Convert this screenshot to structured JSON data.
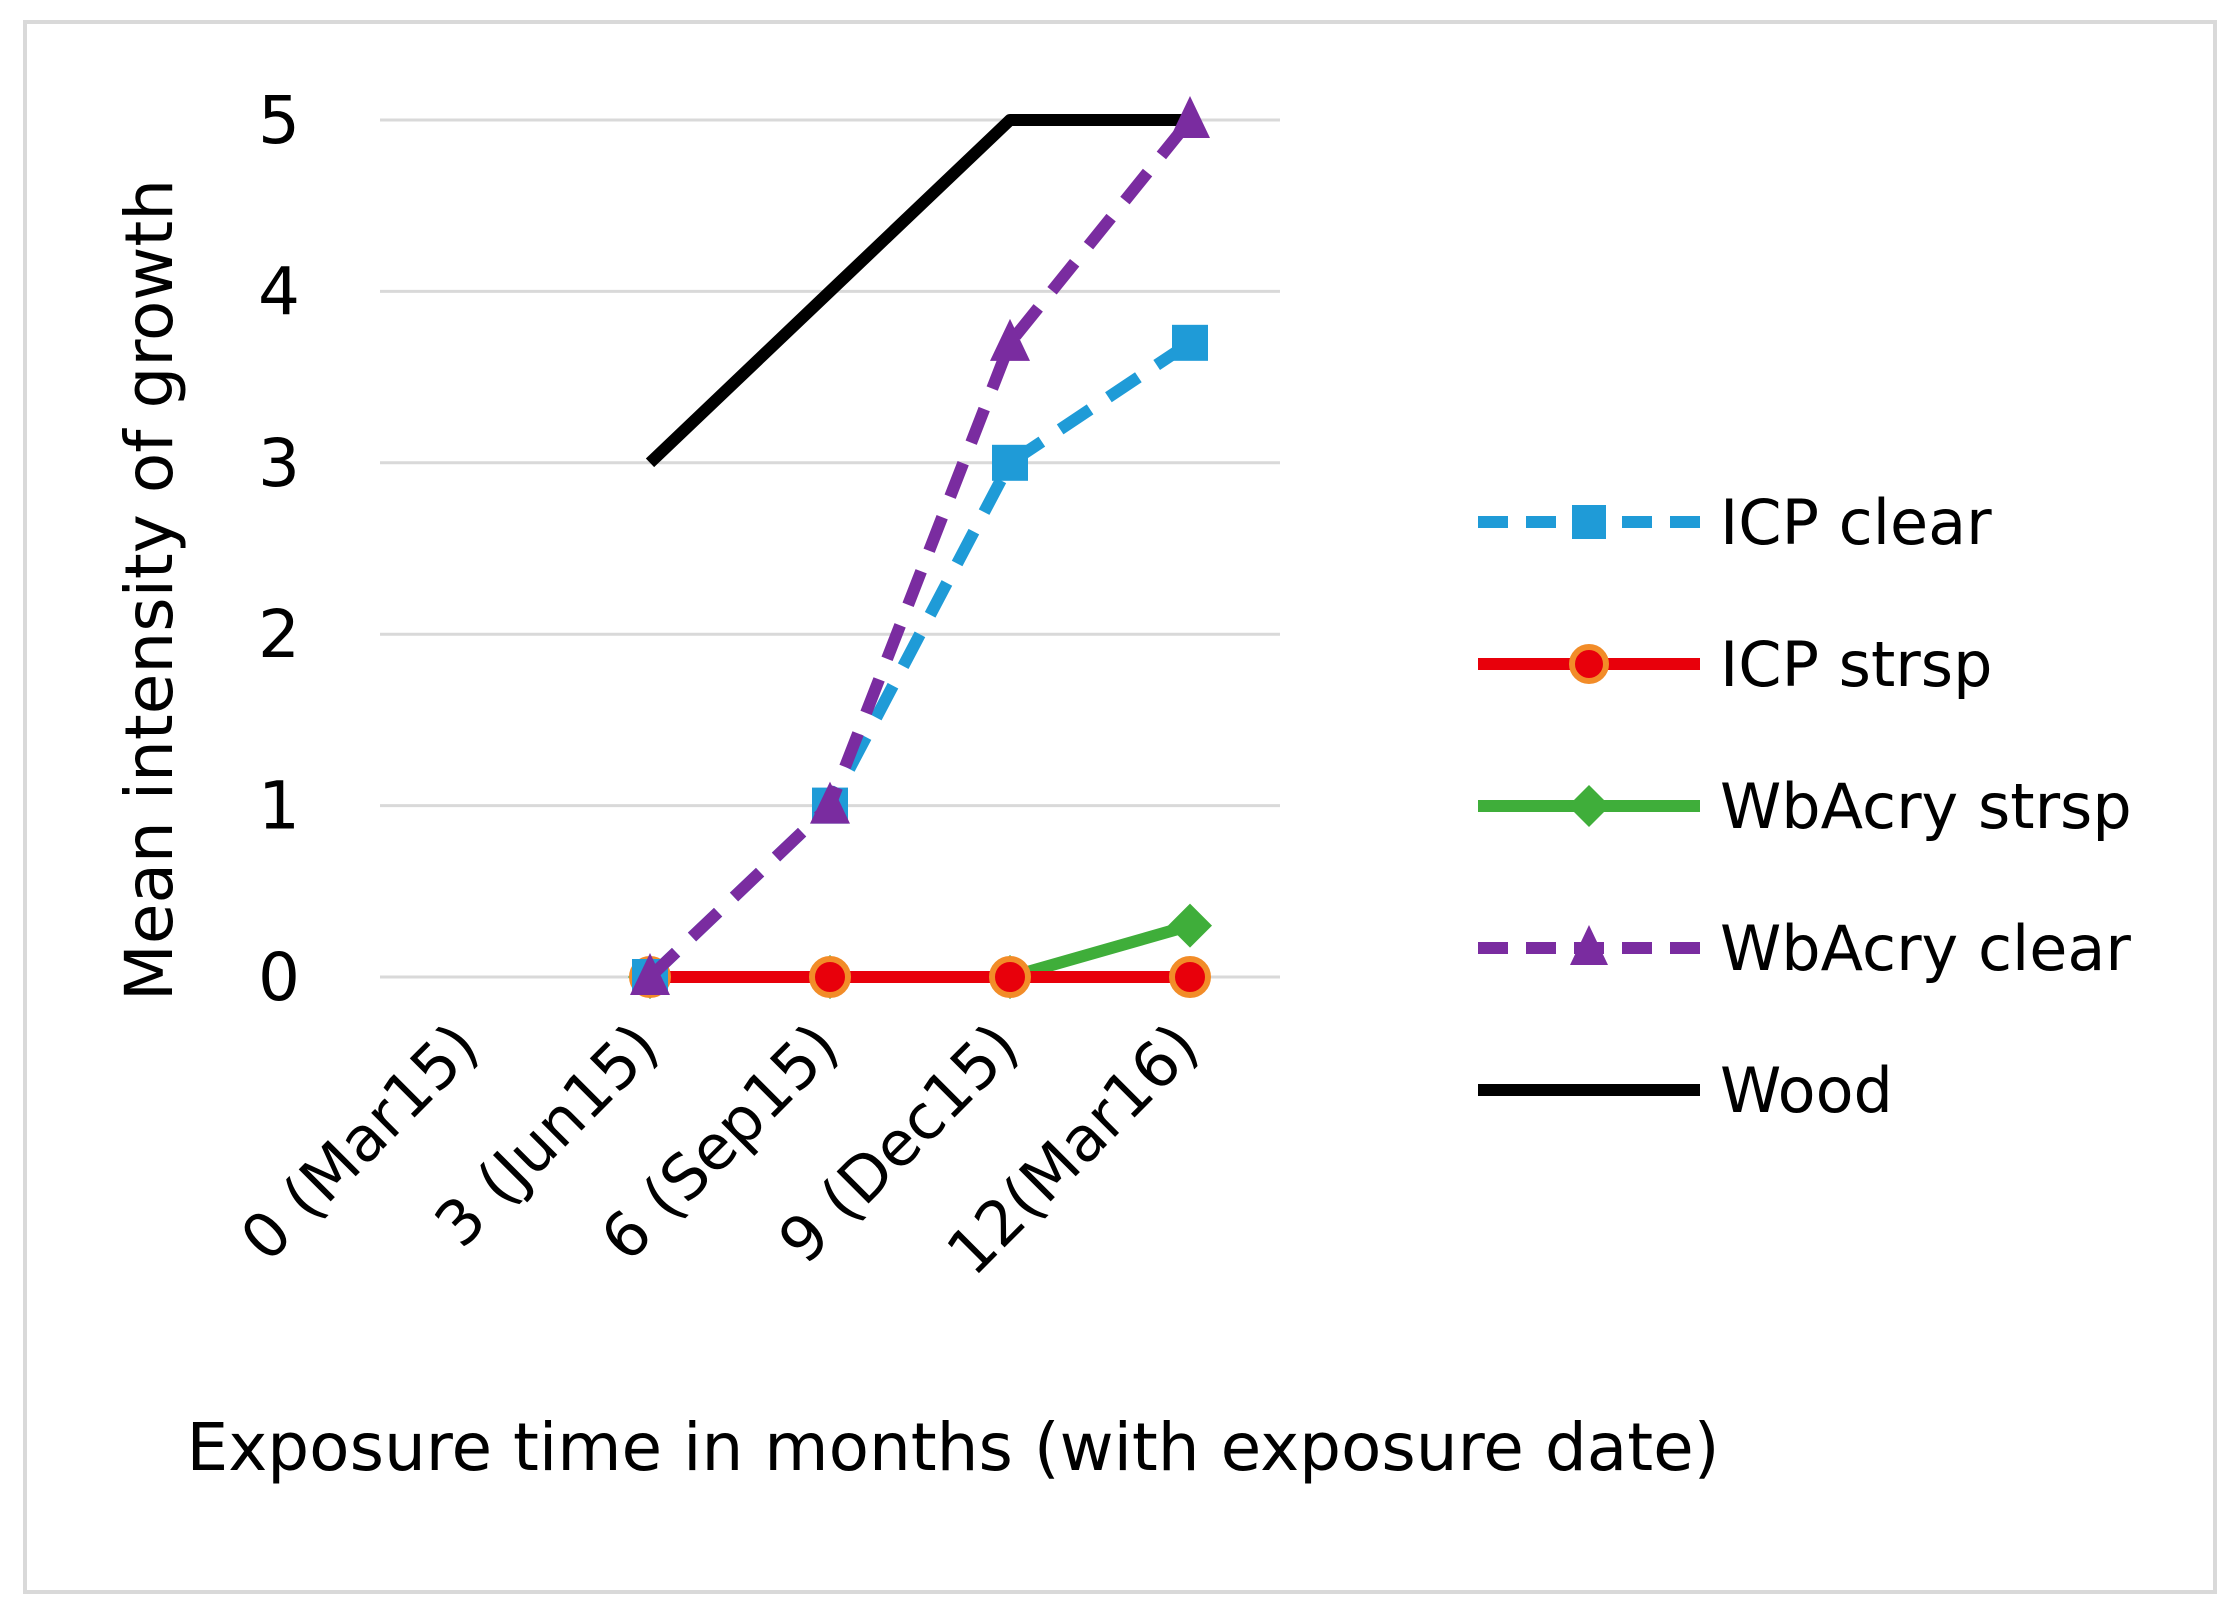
{
  "chart_data": {
    "type": "line",
    "title": "",
    "xlabel": "Exposure time in months (with exposure date)",
    "ylabel": "Mean intensity of growth",
    "categories": [
      "0 (Mar15)",
      "3 (Jun15)",
      "6 (Sep15)",
      "9 (Dec15)",
      "12(Mar16)"
    ],
    "y_ticks": [
      "0",
      "1",
      "2",
      "3",
      "4",
      "5"
    ],
    "ylim": [
      0,
      5
    ],
    "grid": true,
    "legend_position": "right",
    "series": [
      {
        "name": "ICP clear",
        "color": "#1f9bd7",
        "dash": "dashed",
        "marker": "square",
        "values": [
          null,
          0,
          1,
          3,
          3.7
        ]
      },
      {
        "name": "ICP strsp",
        "color": "#e8000b",
        "marker_edge": "#f28c28",
        "dash": "solid",
        "marker": "circle",
        "values": [
          null,
          0,
          0,
          0,
          0
        ]
      },
      {
        "name": "WbAcry strsp",
        "color": "#3fae3a",
        "dash": "solid",
        "marker": "diamond",
        "values": [
          null,
          0,
          0,
          0,
          0.3
        ]
      },
      {
        "name": "WbAcry clear",
        "color": "#7a2ca0",
        "dash": "dashed",
        "marker": "triangle",
        "values": [
          null,
          0,
          1,
          3.7,
          5
        ]
      },
      {
        "name": "Wood",
        "color": "#000000",
        "dash": "solid",
        "marker": "none",
        "values": [
          null,
          3,
          4,
          5,
          5
        ]
      }
    ]
  }
}
